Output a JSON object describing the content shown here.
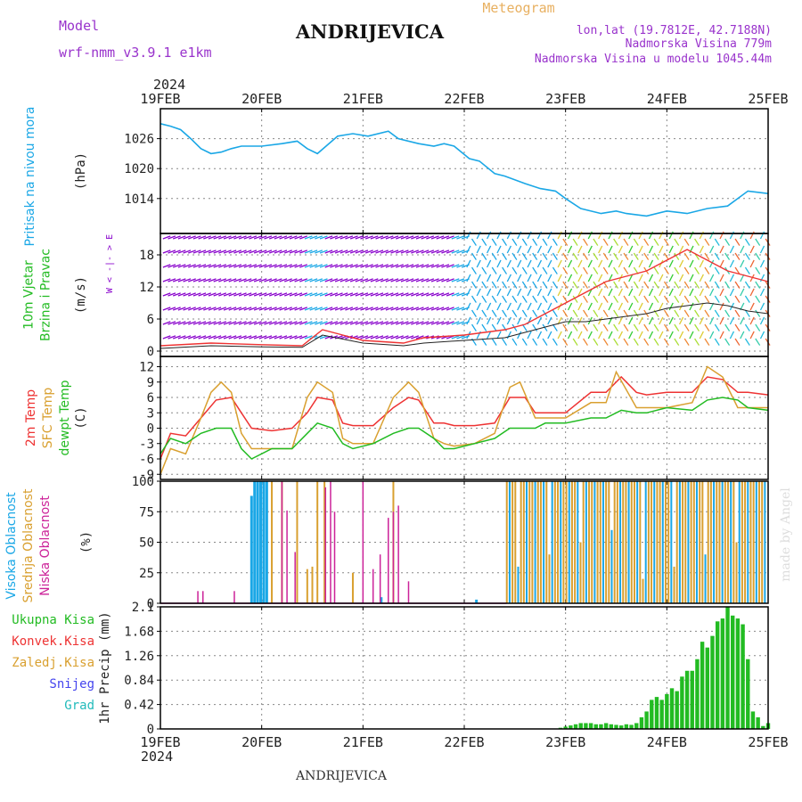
{
  "header": {
    "model_label": "Model",
    "model_name": "wrf-nmm_v3.9.1  e1km",
    "title": "ANDRIJEVICA",
    "meteogram": "Meteogram",
    "lonlat": "lon,lat (19.7812E, 42.7188N)",
    "elevation": "Nadmorska Visina 779m",
    "model_elevation": "Nadmorska Visina u modelu 1045.44m",
    "footer_title": "ANDRIJEVICA",
    "watermark": "made by Angel"
  },
  "colors": {
    "pressure": "#1aa7e6",
    "wind_label": "#22bb22",
    "wind_purple": "#8800cc",
    "temp2m": "#ee3333",
    "sfc": "#d9a030",
    "dew": "#22bb22",
    "cloud_high": "#1aa7e6",
    "cloud_mid": "#d9a030",
    "cloud_low": "#cc2299",
    "precip": "#22bb22",
    "grid": "#888888"
  },
  "chart_data": {
    "time_axis": {
      "year": "2024",
      "ticks": [
        "19FEB",
        "20FEB",
        "21FEB",
        "22FEB",
        "23FEB",
        "24FEB",
        "25FEB"
      ],
      "days": 6
    },
    "panels": [
      {
        "id": "pressure",
        "type": "line",
        "ylabel_lines": [
          "Pritisak na nivou mora"
        ],
        "unit": "(hPa)",
        "yticks": [
          "1026",
          "1020",
          "1014"
        ],
        "ylim": [
          1007,
          1032
        ],
        "series": [
          {
            "color_key": "pressure",
            "x": [
              0,
              0.1,
              0.2,
              0.3,
              0.4,
              0.5,
              0.6,
              0.7,
              0.8,
              1.0,
              1.2,
              1.35,
              1.45,
              1.55,
              1.75,
              1.9,
              2.05,
              2.25,
              2.35,
              2.55,
              2.7,
              2.8,
              2.9,
              3.05,
              3.15,
              3.3,
              3.4,
              3.6,
              3.75,
              3.9,
              4.0,
              4.15,
              4.35,
              4.5,
              4.6,
              4.8,
              5.0,
              5.2,
              5.4,
              5.6,
              5.8,
              6.0
            ],
            "y": [
              1029,
              1028.5,
              1027.8,
              1026,
              1024,
              1023,
              1023.3,
              1024,
              1024.5,
              1024.5,
              1025,
              1025.5,
              1024,
              1023,
              1026.5,
              1027,
              1026.5,
              1027.5,
              1026,
              1025,
              1024.5,
              1025,
              1024.5,
              1022,
              1021.5,
              1019,
              1018.5,
              1017,
              1016,
              1015.5,
              1014,
              1012,
              1011,
              1011.5,
              1011,
              1010.5,
              1011.5,
              1011,
              1012,
              1012.5,
              1015.5,
              1015
            ]
          }
        ]
      },
      {
        "id": "wind",
        "type": "barbs",
        "ylabel_lines": [
          "10m Vjetar",
          "Brzina i Pravac"
        ],
        "unit": "(m/s)",
        "compass": "W < -|- > E",
        "yticks": [
          "18",
          "12",
          "6",
          "0"
        ],
        "ylim": [
          -1,
          22
        ],
        "speed_x": [
          0,
          0.5,
          1.0,
          1.4,
          1.6,
          2.0,
          2.4,
          2.6,
          3.0,
          3.4,
          3.6,
          3.8,
          4.0,
          4.2,
          4.4,
          4.6,
          4.8,
          5.0,
          5.2,
          5.4,
          5.6,
          5.8,
          6.0
        ],
        "speed_y": [
          1,
          1.5,
          1.2,
          1.0,
          4,
          2,
          1.5,
          2.5,
          3,
          4,
          5,
          7,
          9,
          11,
          13,
          14,
          15,
          17,
          19,
          17,
          15,
          14,
          13
        ],
        "mean_y": [
          0.5,
          1,
          0.8,
          0.7,
          3,
          1.5,
          1.0,
          1.5,
          2,
          2.5,
          3.5,
          4.5,
          5.5,
          5.5,
          6,
          6.5,
          7,
          8,
          8.5,
          9,
          8.5,
          7.5,
          7
        ]
      },
      {
        "id": "temperature",
        "type": "line",
        "ylabel_lines": [
          "2m Temp",
          "SFC Temp",
          "dewpt Temp"
        ],
        "unit": "(C)",
        "yticks": [
          "12",
          "9",
          "6",
          "3",
          "0",
          "-3",
          "-6",
          "-9"
        ],
        "ylim": [
          -10,
          14
        ],
        "series": [
          {
            "name": "2m Temp",
            "color_key": "temp2m",
            "x": [
              0,
              0.1,
              0.25,
              0.4,
              0.55,
              0.7,
              0.8,
              0.9,
              1.1,
              1.3,
              1.45,
              1.55,
              1.7,
              1.8,
              1.9,
              2.1,
              2.3,
              2.45,
              2.55,
              2.7,
              2.8,
              2.9,
              3.1,
              3.3,
              3.45,
              3.6,
              3.7,
              3.8,
              4.0,
              4.25,
              4.4,
              4.55,
              4.7,
              4.8,
              5.0,
              5.25,
              5.4,
              5.55,
              5.7,
              5.8,
              6.0
            ],
            "y": [
              -6,
              -1,
              -1.5,
              2,
              5.5,
              6,
              3,
              0,
              -0.5,
              0,
              3,
              6,
              5.5,
              1,
              0.5,
              0.5,
              4,
              6,
              5.5,
              1,
              1,
              0.5,
              0.5,
              1,
              6,
              6,
              3,
              3,
              3,
              7,
              7,
              10,
              7,
              6.5,
              7,
              7,
              10,
              9.5,
              7,
              7,
              6.5
            ]
          },
          {
            "name": "SFC Temp",
            "color_key": "sfc",
            "x": [
              0,
              0.1,
              0.25,
              0.4,
              0.5,
              0.6,
              0.7,
              0.8,
              0.9,
              1.1,
              1.3,
              1.45,
              1.55,
              1.7,
              1.8,
              1.9,
              2.1,
              2.3,
              2.45,
              2.55,
              2.7,
              2.8,
              2.9,
              3.1,
              3.3,
              3.45,
              3.55,
              3.7,
              3.8,
              4.0,
              4.25,
              4.4,
              4.5,
              4.7,
              4.8,
              5.0,
              5.25,
              5.4,
              5.55,
              5.7,
              5.8,
              6.0
            ],
            "y": [
              -9,
              -4,
              -5,
              2,
              7,
              9,
              7,
              -1,
              -4,
              -4,
              -4,
              6,
              9,
              7,
              -2,
              -3,
              -3,
              6,
              9,
              7,
              -2,
              -3,
              -3.5,
              -3,
              -1,
              8,
              9,
              2,
              2,
              2,
              5,
              5,
              11,
              4,
              4,
              4,
              5,
              12,
              10,
              4,
              4,
              4
            ]
          },
          {
            "name": "dewpt Temp",
            "color_key": "dew",
            "x": [
              0,
              0.1,
              0.25,
              0.4,
              0.55,
              0.7,
              0.8,
              0.9,
              1.1,
              1.3,
              1.45,
              1.55,
              1.7,
              1.8,
              1.9,
              2.1,
              2.3,
              2.45,
              2.55,
              2.7,
              2.8,
              2.9,
              3.1,
              3.3,
              3.45,
              3.6,
              3.7,
              3.8,
              4.0,
              4.25,
              4.4,
              4.55,
              4.7,
              4.8,
              5.0,
              5.25,
              5.4,
              5.55,
              5.7,
              5.8,
              6.0
            ],
            "y": [
              -5,
              -2,
              -3,
              -1,
              0,
              0,
              -4,
              -6,
              -4,
              -4,
              -1,
              1,
              0,
              -3,
              -4,
              -3,
              -1,
              0,
              0,
              -2,
              -4,
              -4,
              -3,
              -2,
              0,
              0,
              0,
              1,
              1,
              2,
              2,
              3.5,
              3,
              3,
              4,
              3.5,
              5.5,
              6,
              5.5,
              4,
              3.5
            ]
          }
        ]
      },
      {
        "id": "clouds",
        "type": "bar",
        "ylabel_lines": [
          "Visoka Oblacnost",
          "Srednja Oblacnost",
          "Niska Oblacnost"
        ],
        "unit": "(%)",
        "yticks": [
          "100",
          "75",
          "50",
          "25",
          "0"
        ],
        "ylim": [
          0,
          100
        ],
        "high": {
          "x": [
            0.9,
            0.93,
            0.96,
            0.99,
            1.02,
            1.05,
            2.18,
            3.12
          ],
          "y": [
            88,
            100,
            100,
            100,
            100,
            100,
            5,
            3
          ]
        },
        "mid": {
          "x": [
            1.1,
            1.2,
            1.35,
            1.45,
            1.5,
            1.55,
            1.62,
            1.9,
            2.3
          ],
          "y": [
            100,
            100,
            100,
            28,
            30,
            100,
            100,
            25,
            100
          ]
        },
        "low": {
          "x": [
            0.37,
            0.42,
            0.73,
            1.2,
            1.25,
            1.33,
            1.63,
            1.68,
            1.72,
            2.0,
            2.1,
            2.17,
            2.25,
            2.3,
            2.35,
            2.45
          ],
          "y": [
            10,
            10,
            10,
            100,
            76,
            42,
            95,
            100,
            75,
            100,
            28,
            40,
            70,
            75,
            80,
            18
          ]
        },
        "overcast_from_x": 3.42,
        "overcast_to_x": 5.98
      },
      {
        "id": "precip",
        "type": "bar",
        "ylabel_lines": [
          "Ukupna Kisa",
          "Konvek.Kisa",
          "Zaledj.Kisa",
          "Snijeg",
          "Grad"
        ],
        "label_color_keys": [
          "precip",
          "temp2m",
          "sfc",
          "snow",
          "hail"
        ],
        "unit": "1hr Precip (mm)",
        "yticks": [
          "2.1",
          "1.68",
          "1.26",
          "0.84",
          "0.42",
          "0"
        ],
        "ylim": [
          0,
          2.1
        ],
        "x": [
          3.95,
          4.0,
          4.05,
          4.1,
          4.15,
          4.2,
          4.25,
          4.3,
          4.35,
          4.4,
          4.45,
          4.5,
          4.55,
          4.6,
          4.65,
          4.7,
          4.75,
          4.8,
          4.85,
          4.9,
          4.95,
          5.0,
          5.05,
          5.1,
          5.15,
          5.2,
          5.25,
          5.3,
          5.35,
          5.4,
          5.45,
          5.5,
          5.55,
          5.6,
          5.65,
          5.7,
          5.75,
          5.8,
          5.85,
          5.9,
          5.95,
          6.0
        ],
        "y": [
          0.02,
          0.04,
          0.06,
          0.08,
          0.1,
          0.1,
          0.1,
          0.08,
          0.08,
          0.1,
          0.08,
          0.07,
          0.06,
          0.08,
          0.07,
          0.1,
          0.2,
          0.3,
          0.5,
          0.55,
          0.5,
          0.6,
          0.7,
          0.65,
          0.9,
          1.0,
          1.0,
          1.2,
          1.5,
          1.4,
          1.6,
          1.85,
          1.9,
          2.1,
          1.95,
          1.9,
          1.8,
          1.2,
          0.3,
          0.2,
          0.05,
          0.1
        ]
      }
    ]
  }
}
